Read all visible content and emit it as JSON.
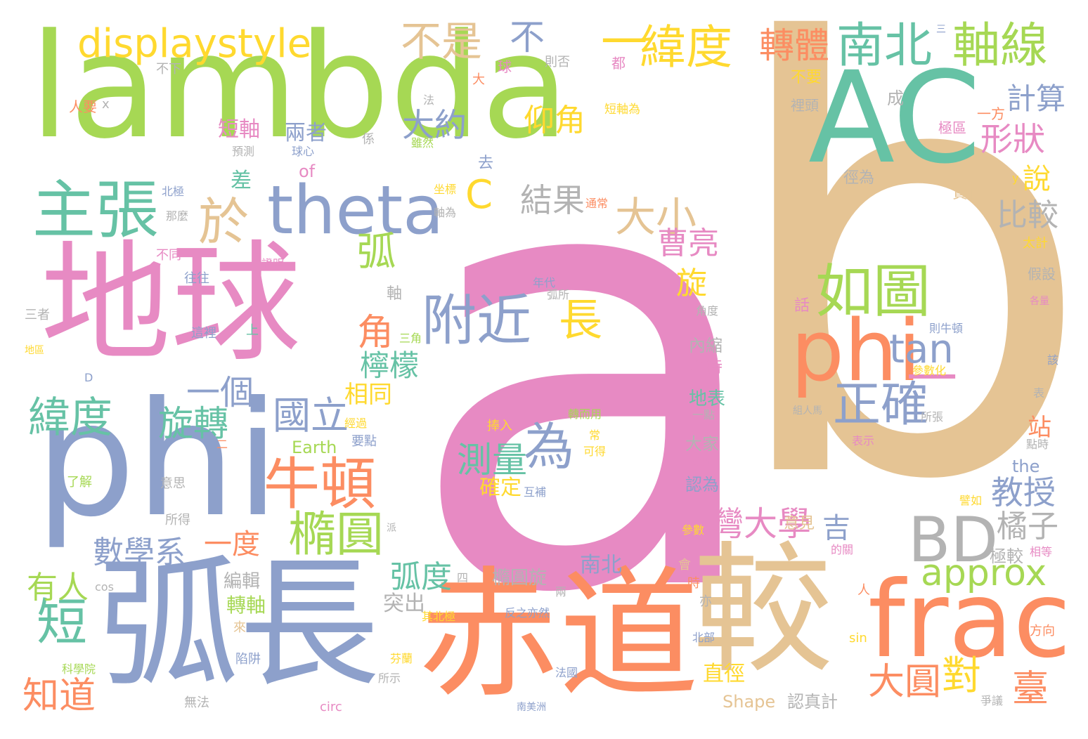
{
  "palette": {
    "pink": "#e78ac3",
    "tan": "#e5c494",
    "green": "#a6d854",
    "teal": "#66c2a5",
    "blue": "#8da0cb",
    "orange": "#fc8d62",
    "yellow": "#ffd92f",
    "gray": "#b3b3b3"
  },
  "words": [
    {
      "text": "a",
      "color": "pink"
    },
    {
      "text": "b",
      "color": "tan"
    },
    {
      "text": "lambda",
      "color": "green"
    },
    {
      "text": "AC",
      "color": "teal"
    },
    {
      "text": "地球",
      "color": "pink"
    },
    {
      "text": "phi",
      "color": "blue"
    },
    {
      "text": "弧長",
      "color": "blue"
    },
    {
      "text": "赤道",
      "color": "orange"
    },
    {
      "text": "較",
      "color": "tan"
    },
    {
      "text": "frac",
      "color": "orange"
    },
    {
      "text": "phi",
      "color": "orange"
    },
    {
      "text": "BD",
      "color": "gray"
    },
    {
      "text": "theta",
      "color": "blue"
    },
    {
      "text": "主張",
      "color": "teal"
    },
    {
      "text": "如圖",
      "color": "green"
    },
    {
      "text": "附近",
      "color": "blue"
    },
    {
      "text": "為",
      "color": "blue"
    },
    {
      "text": "牛頓",
      "color": "orange"
    },
    {
      "text": "displaystyle",
      "color": "yellow"
    },
    {
      "text": "南北",
      "color": "teal"
    },
    {
      "text": "軸線",
      "color": "green"
    },
    {
      "text": "緯度",
      "color": "yellow"
    },
    {
      "text": "approx",
      "color": "green"
    },
    {
      "text": "於",
      "color": "tan"
    },
    {
      "text": "正確",
      "color": "blue"
    },
    {
      "text": "橢圓",
      "color": "green"
    },
    {
      "text": "短",
      "color": "teal"
    },
    {
      "text": "大圓",
      "color": "orange"
    },
    {
      "text": "臺",
      "color": "orange"
    },
    {
      "text": "對",
      "color": "yellow"
    },
    {
      "text": "灣大學",
      "color": "pink"
    },
    {
      "text": "不是",
      "color": "tan"
    },
    {
      "text": "不",
      "color": "blue"
    },
    {
      "text": "一",
      "color": "yellow"
    },
    {
      "text": "一",
      "color": "pink"
    },
    {
      "text": "轉體",
      "color": "orange"
    },
    {
      "text": "tan",
      "color": "blue"
    },
    {
      "text": "大小",
      "color": "tan"
    },
    {
      "text": "長",
      "color": "yellow"
    },
    {
      "text": "角",
      "color": "orange"
    },
    {
      "text": "C",
      "color": "yellow"
    },
    {
      "text": "弧",
      "color": "green"
    },
    {
      "text": "緯度",
      "color": "teal"
    },
    {
      "text": "旋轉",
      "color": "teal"
    },
    {
      "text": "一個",
      "color": "blue"
    },
    {
      "text": "國立",
      "color": "blue"
    },
    {
      "text": "測量",
      "color": "teal"
    },
    {
      "text": "數學系",
      "color": "blue"
    },
    {
      "text": "知道",
      "color": "orange"
    },
    {
      "text": "弧度",
      "color": "teal"
    },
    {
      "text": "結果",
      "color": "gray"
    },
    {
      "text": "大約",
      "color": "blue"
    },
    {
      "text": "仰角",
      "color": "yellow"
    },
    {
      "text": "形狀",
      "color": "pink"
    },
    {
      "text": "計算",
      "color": "blue"
    },
    {
      "text": "教授",
      "color": "blue"
    },
    {
      "text": "比較",
      "color": "gray"
    },
    {
      "text": "橘子",
      "color": "gray"
    },
    {
      "text": "吉",
      "color": "blue"
    },
    {
      "text": "曹亮",
      "color": "pink"
    },
    {
      "text": "檸檬",
      "color": "teal"
    },
    {
      "text": "有人",
      "color": "green"
    },
    {
      "text": "一度",
      "color": "orange"
    },
    {
      "text": "說",
      "color": "yellow"
    },
    {
      "text": "旋",
      "color": "yellow"
    },
    {
      "text": "差",
      "color": "teal"
    },
    {
      "text": "相同",
      "color": "yellow"
    },
    {
      "text": "站",
      "color": "orange"
    },
    {
      "text": "確定",
      "color": "yellow"
    },
    {
      "text": "突出",
      "color": "gray"
    },
    {
      "text": "南北",
      "color": "blue"
    },
    {
      "text": "直徑",
      "color": "yellow"
    },
    {
      "text": "認真計",
      "color": "gray"
    },
    {
      "text": "Shape",
      "color": "tan"
    },
    {
      "text": "編輯",
      "color": "gray"
    },
    {
      "text": "轉軸",
      "color": "green"
    },
    {
      "text": "橢圓旋",
      "color": "gray"
    },
    {
      "text": "短軸",
      "color": "pink"
    },
    {
      "text": "兩者",
      "color": "blue"
    },
    {
      "text": "Earth",
      "color": "green"
    },
    {
      "text": "of",
      "color": "pink"
    },
    {
      "text": "the",
      "color": "blue"
    },
    {
      "text": "地表",
      "color": "teal"
    },
    {
      "text": "爭持",
      "color": "pink"
    },
    {
      "text": "內縮",
      "color": "gray"
    },
    {
      "text": "大家",
      "color": "gray"
    },
    {
      "text": "認為",
      "color": "blue"
    },
    {
      "text": "意見",
      "color": "tan"
    },
    {
      "text": "極較",
      "color": "gray"
    },
    {
      "text": "徑為",
      "color": "gray"
    },
    {
      "text": "責任",
      "color": "tan"
    },
    {
      "text": "極區",
      "color": "pink"
    },
    {
      "text": "裡頭",
      "color": "gray"
    },
    {
      "text": "不要",
      "color": "yellow"
    },
    {
      "text": "一方",
      "color": "orange"
    },
    {
      "text": "成",
      "color": "gray"
    },
    {
      "text": "短軸為",
      "color": "yellow"
    },
    {
      "text": "則否",
      "color": "gray"
    },
    {
      "text": "球",
      "color": "pink"
    },
    {
      "text": "大",
      "color": "orange"
    },
    {
      "text": "都",
      "color": "pink"
    },
    {
      "text": "不下",
      "color": "gray"
    },
    {
      "text": "人要",
      "color": "orange"
    },
    {
      "text": "x",
      "color": "gray"
    },
    {
      "text": "法",
      "color": "gray"
    },
    {
      "text": "預測",
      "color": "gray"
    },
    {
      "text": "係",
      "color": "gray"
    },
    {
      "text": "雖然",
      "color": "green"
    },
    {
      "text": "球心",
      "color": "blue"
    },
    {
      "text": "去",
      "color": "blue"
    },
    {
      "text": "坐標",
      "color": "yellow"
    },
    {
      "text": "軸為",
      "color": "gray"
    },
    {
      "text": "通常",
      "color": "orange"
    },
    {
      "text": "北極",
      "color": "blue"
    },
    {
      "text": "那麼",
      "color": "gray"
    },
    {
      "text": "不同",
      "color": "pink"
    },
    {
      "text": "證明",
      "color": "pink"
    },
    {
      "text": "往往",
      "color": "blue"
    },
    {
      "text": "年代",
      "color": "blue"
    },
    {
      "text": "弧所",
      "color": "gray"
    },
    {
      "text": "軸",
      "color": "gray"
    },
    {
      "text": "三者",
      "color": "gray"
    },
    {
      "text": "這裡",
      "color": "blue"
    },
    {
      "text": "上",
      "color": "teal"
    },
    {
      "text": "三角",
      "color": "green"
    },
    {
      "text": "角度",
      "color": "gray"
    },
    {
      "text": "話",
      "color": "pink"
    },
    {
      "text": "則牛頓",
      "color": "blue"
    },
    {
      "text": "假設",
      "color": "gray"
    },
    {
      "text": "各量",
      "color": "pink"
    },
    {
      "text": "太計",
      "color": "yellow"
    },
    {
      "text": "地區",
      "color": "yellow"
    },
    {
      "text": "D",
      "color": "blue"
    },
    {
      "text": "該",
      "color": "blue"
    },
    {
      "text": "表",
      "color": "gray"
    },
    {
      "text": "參數化",
      "color": "yellow"
    },
    {
      "text": "組人馬",
      "color": "gray"
    },
    {
      "text": "所張",
      "color": "gray"
    },
    {
      "text": "表示",
      "color": "pink"
    },
    {
      "text": "點時",
      "color": "gray"
    },
    {
      "text": "一點",
      "color": "gray"
    },
    {
      "text": "轉而用",
      "color": "green"
    },
    {
      "text": "經過",
      "color": "yellow"
    },
    {
      "text": "要點",
      "color": "blue"
    },
    {
      "text": "捧入",
      "color": "yellow"
    },
    {
      "text": "常",
      "color": "yellow"
    },
    {
      "text": "可得",
      "color": "yellow"
    },
    {
      "text": "分別",
      "color": "pink"
    },
    {
      "text": "了解",
      "color": "green"
    },
    {
      "text": "意思",
      "color": "gray"
    },
    {
      "text": "互補",
      "color": "blue"
    },
    {
      "text": "所得",
      "color": "gray"
    },
    {
      "text": "派",
      "color": "gray"
    },
    {
      "text": "參數",
      "color": "yellow"
    },
    {
      "text": "的關",
      "color": "pink"
    },
    {
      "text": "譬如",
      "color": "yellow"
    },
    {
      "text": "相等",
      "color": "pink"
    },
    {
      "text": "會",
      "color": "tan"
    },
    {
      "text": "時",
      "color": "orange"
    },
    {
      "text": "cos",
      "color": "gray"
    },
    {
      "text": "四",
      "color": "gray"
    },
    {
      "text": "兩",
      "color": "gray"
    },
    {
      "text": "人",
      "color": "orange"
    },
    {
      "text": "亦",
      "color": "gray"
    },
    {
      "text": "其北極",
      "color": "yellow"
    },
    {
      "text": "反之亦然",
      "color": "blue"
    },
    {
      "text": "北部",
      "color": "blue"
    },
    {
      "text": "方向",
      "color": "orange"
    },
    {
      "text": "sin",
      "color": "yellow"
    },
    {
      "text": "來",
      "color": "tan"
    },
    {
      "text": "陷阱",
      "color": "blue"
    },
    {
      "text": "芬蘭",
      "color": "yellow"
    },
    {
      "text": "科學院",
      "color": "green"
    },
    {
      "text": "所示",
      "color": "gray"
    },
    {
      "text": "法國",
      "color": "blue"
    },
    {
      "text": "無法",
      "color": "gray"
    },
    {
      "text": "circ",
      "color": "pink"
    },
    {
      "text": "南美洲",
      "color": "blue"
    },
    {
      "text": "爭議",
      "color": "gray"
    },
    {
      "text": "y",
      "color": "yellow"
    },
    {
      "text": "三",
      "color": "blue"
    },
    {
      "text": "則否",
      "color": "gray"
    },
    {
      "text": "二",
      "color": "orange"
    }
  ]
}
